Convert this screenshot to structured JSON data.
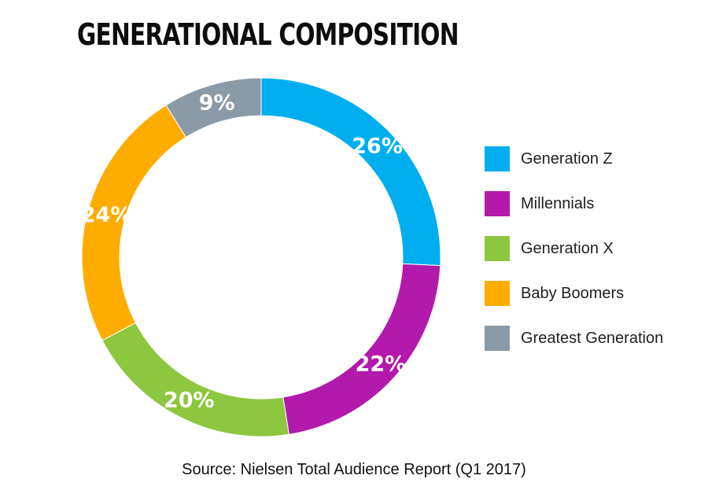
{
  "chart_data": {
    "type": "pie",
    "title": "GENERATIONAL COMPOSITION",
    "categories": [
      "Generation Z",
      "Millennials",
      "Generation X",
      "Baby Boomers",
      "Greatest Generation"
    ],
    "values": [
      26,
      22,
      20,
      24,
      9
    ],
    "data_labels": [
      "26%",
      "22%",
      "20%",
      "24%",
      "9%"
    ],
    "colors": [
      "#00aeef",
      "#b31aab",
      "#8dc63f",
      "#ffac00",
      "#8b9aa7"
    ],
    "donut": true,
    "legend_position": "right",
    "source": "Source: Nielsen Total Audience Report (Q1 2017)"
  }
}
